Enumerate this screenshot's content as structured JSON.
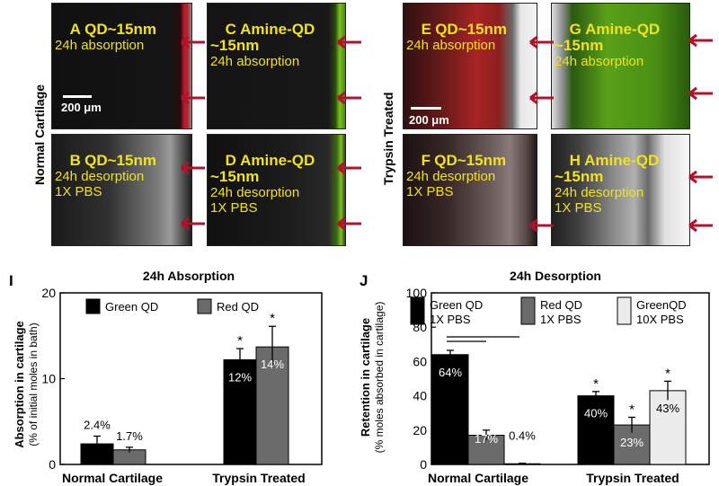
{
  "row_labels": {
    "left": "Normal Cartilage",
    "right": "Trypsin Treated"
  },
  "scale_label": "200 μm",
  "panels": {
    "A": {
      "letter": "A",
      "l1": "QD~15nm",
      "l2": "24h absorption",
      "l3": "",
      "l4": ""
    },
    "B": {
      "letter": "B",
      "l1": "QD~15nm",
      "l2": "24h desorption",
      "l3": "1X PBS",
      "l4": ""
    },
    "C": {
      "letter": "C",
      "l1": "Amine-QD",
      "l2": "~15nm",
      "l3": "24h absorption",
      "l4": ""
    },
    "D": {
      "letter": "D",
      "l1": "Amine-QD",
      "l2": "~15nm",
      "l3": "24h desorption",
      "l4": "1X PBS"
    },
    "E": {
      "letter": "E",
      "l1": "QD~15nm",
      "l2": "24h absorption",
      "l3": "",
      "l4": ""
    },
    "F": {
      "letter": "F",
      "l1": "QD~15nm",
      "l2": "24h desorption",
      "l3": "1X PBS",
      "l4": ""
    },
    "G": {
      "letter": "G",
      "l1": "Amine-QD",
      "l2": "~15nm",
      "l3": "24h absorption",
      "l4": ""
    },
    "H": {
      "letter": "H",
      "l1": "Amine-QD",
      "l2": "~15nm",
      "l3": "24h desorption",
      "l4": "1X PBS"
    }
  },
  "colors": {
    "green_bar": "#000000",
    "red_bar": "#6b6b6b",
    "green_qd_10x": "#ececec",
    "arrow": "#b3122a",
    "panel_text": "#f2e21a"
  },
  "chart_data": [
    {
      "panel_letter": "I",
      "type": "bar",
      "title": "24h Absorption",
      "ylabel": "Absorption in cartilage",
      "ylabel2": "(% of initial moles in bath)",
      "categories": [
        "Normal Cartilage",
        "Trypsin Treated"
      ],
      "ylim": [
        0,
        20
      ],
      "yticks": [
        "0",
        "10",
        "20"
      ],
      "series": [
        {
          "name": "Green QD",
          "values": [
            2.4,
            12.2
          ],
          "errors": [
            0.9,
            1.3
          ],
          "labels": [
            "2.4%",
            "12%"
          ],
          "stars": [
            "",
            "*"
          ]
        },
        {
          "name": "Red QD",
          "values": [
            1.7,
            13.7
          ],
          "errors": [
            0.3,
            2.4
          ],
          "labels": [
            "1.7%",
            "14%"
          ],
          "stars": [
            "",
            "*"
          ]
        }
      ]
    },
    {
      "panel_letter": "J",
      "type": "bar",
      "title": "24h Desorption",
      "ylabel": "Retention in cartilage",
      "ylabel2": "(% moles absorbed in cartilage)",
      "categories": [
        "Normal Cartilage",
        "Trypsin Treated"
      ],
      "ylim": [
        0,
        100
      ],
      "yticks": [
        "0",
        "20",
        "40",
        "60",
        "80",
        "100"
      ],
      "series": [
        {
          "name": "Green QD",
          "name2": "1X PBS",
          "values": [
            64,
            40
          ],
          "errors": [
            2.5,
            2.5
          ],
          "labels": [
            "64%",
            "40%"
          ],
          "stars": [
            "",
            "*"
          ]
        },
        {
          "name": "Red QD",
          "name2": "1X PBS",
          "values": [
            17,
            23
          ],
          "errors": [
            3,
            4.5
          ],
          "labels": [
            "17%",
            "23%"
          ],
          "stars": [
            "",
            "*"
          ]
        },
        {
          "name": "GreenQD",
          "name2": "10X PBS",
          "values": [
            0.4,
            43
          ],
          "errors": [
            0.3,
            5.5
          ],
          "labels": [
            "0.4%",
            "43%"
          ],
          "stars": [
            "",
            "*"
          ]
        }
      ]
    }
  ]
}
